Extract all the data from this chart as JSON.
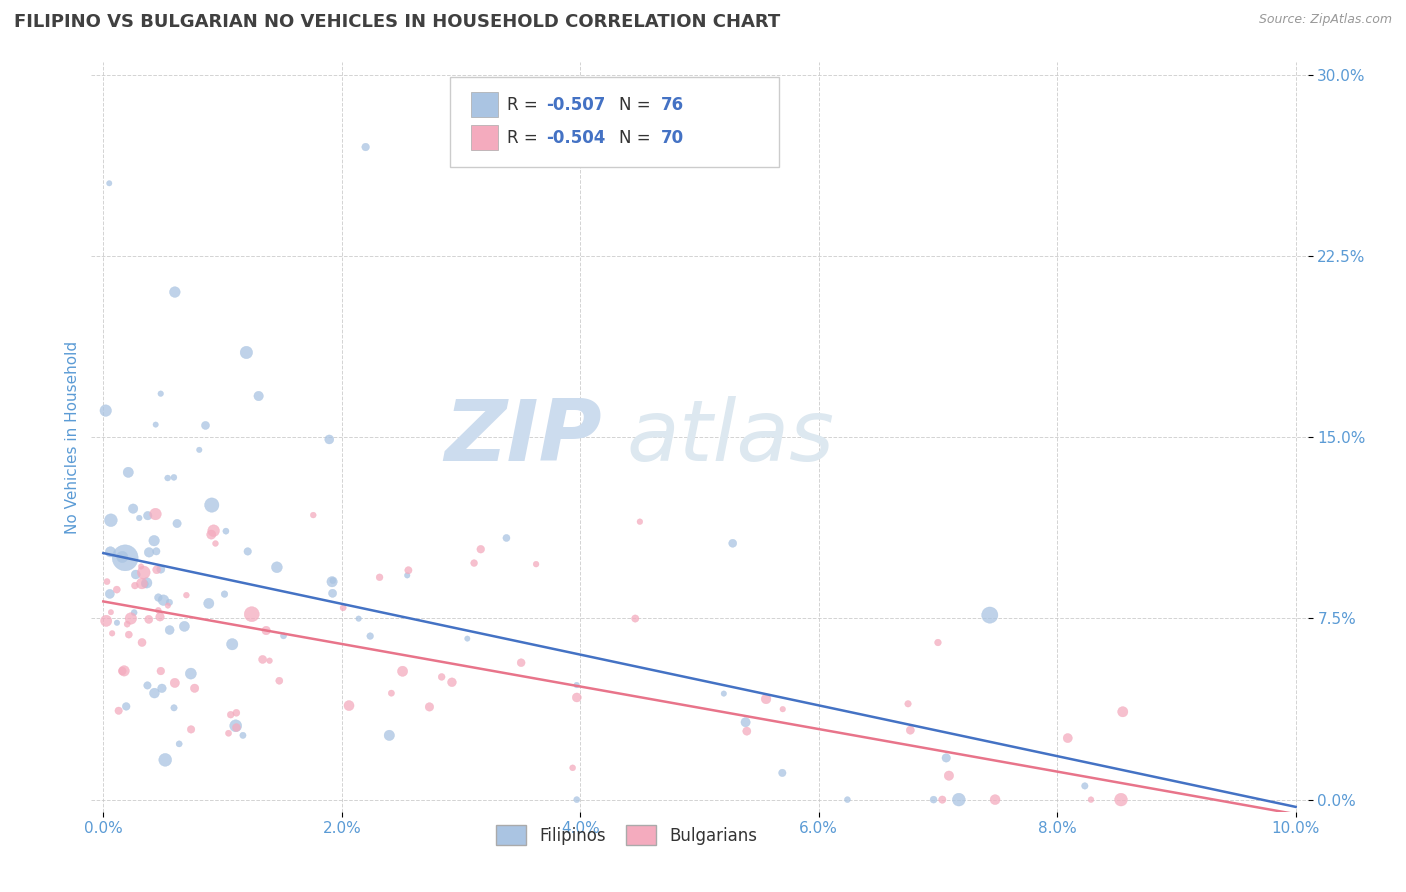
{
  "title": "FILIPINO VS BULGARIAN NO VEHICLES IN HOUSEHOLD CORRELATION CHART",
  "source": "Source: ZipAtlas.com",
  "ylabel": "No Vehicles in Household",
  "filipino_R": -0.507,
  "filipino_N": 76,
  "bulgarian_R": -0.504,
  "bulgarian_N": 70,
  "xlim": [
    -0.001,
    0.101
  ],
  "ylim": [
    -0.005,
    0.305
  ],
  "yticks": [
    0.0,
    0.075,
    0.15,
    0.225,
    0.3
  ],
  "ytick_labels": [
    "0.0%",
    "7.5%",
    "15.0%",
    "22.5%",
    "30.0%"
  ],
  "xticks": [
    0.0,
    0.02,
    0.04,
    0.06,
    0.08,
    0.1
  ],
  "xtick_labels": [
    "0.0%",
    "2.0%",
    "4.0%",
    "6.0%",
    "8.0%",
    "10.0%"
  ],
  "filipino_color": "#aac4e2",
  "bulgarian_color": "#f4abbe",
  "trendline_filipino_color": "#4472c4",
  "trendline_bulgarian_color": "#e8748a",
  "watermark_zip": "ZIP",
  "watermark_atlas": "atlas",
  "background_color": "#ffffff",
  "grid_color": "#c8c8c8",
  "axis_label_color": "#5b9bd5",
  "title_color": "#404040",
  "legend_label_color": "#333333",
  "legend_value_color": "#4472c4",
  "fil_trend_intercept": 0.102,
  "fil_trend_slope": -1.05,
  "bul_trend_intercept": 0.082,
  "bul_trend_slope": -0.88
}
